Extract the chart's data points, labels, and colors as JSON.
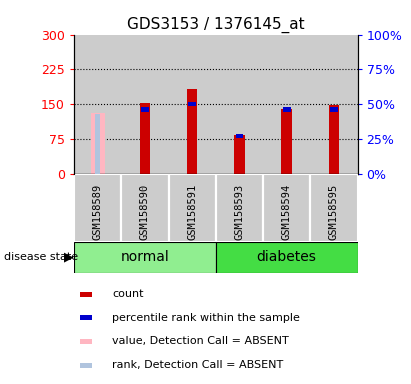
{
  "title": "GDS3153 / 1376145_at",
  "samples": [
    "GSM158589",
    "GSM158590",
    "GSM158591",
    "GSM158593",
    "GSM158594",
    "GSM158595"
  ],
  "groups": [
    {
      "name": "normal",
      "indices": [
        0,
        1,
        2
      ],
      "color": "#90EE90"
    },
    {
      "name": "diabetes",
      "indices": [
        3,
        4,
        5
      ],
      "color": "#44DD44"
    }
  ],
  "count_values": [
    null,
    152,
    183,
    83,
    140,
    148
  ],
  "percentile_values": [
    null,
    46,
    50,
    27,
    46,
    46
  ],
  "absent_value": [
    130,
    null,
    null,
    null,
    null,
    null
  ],
  "absent_rank_pct": [
    43,
    null,
    null,
    null,
    null,
    null
  ],
  "ylim_left": [
    0,
    300
  ],
  "ylim_right": [
    0,
    100
  ],
  "yticks_left": [
    0,
    75,
    150,
    225,
    300
  ],
  "yticks_right": [
    0,
    25,
    50,
    75,
    100
  ],
  "count_color": "#CC0000",
  "percentile_color": "#0000CC",
  "absent_value_color": "#FFB6C1",
  "absent_rank_color": "#B0C4DE",
  "bg_color": "#CCCCCC",
  "label_count": "count",
  "label_percentile": "percentile rank within the sample",
  "label_absent_value": "value, Detection Call = ABSENT",
  "label_absent_rank": "rank, Detection Call = ABSENT"
}
